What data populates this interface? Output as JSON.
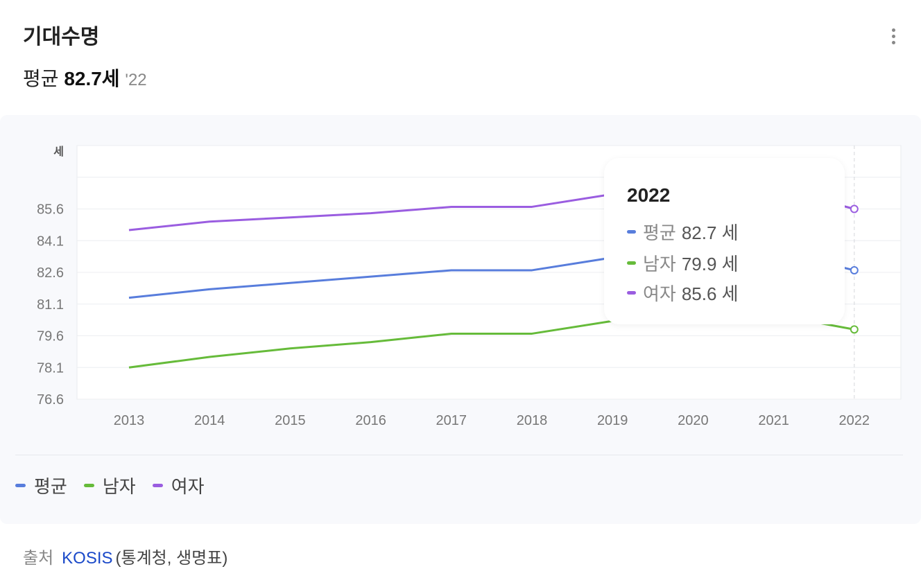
{
  "header": {
    "title": "기대수명",
    "summary_label": "평균",
    "summary_value": "82.7세",
    "summary_year": "'22"
  },
  "menu_icon": "more-vertical-icon",
  "chart_data": {
    "type": "line",
    "ylabel": "세",
    "ylim": [
      76.6,
      88.6
    ],
    "yticks": [
      "76.6",
      "78.1",
      "79.6",
      "81.1",
      "82.6",
      "84.1",
      "85.6"
    ],
    "categories": [
      "2013",
      "2014",
      "2015",
      "2016",
      "2017",
      "2018",
      "2019",
      "2020",
      "2021",
      "2022"
    ],
    "grid": true,
    "legend_placement": "bottom-left",
    "series": [
      {
        "name": "평균",
        "color": "#587ddc",
        "values": [
          81.4,
          81.8,
          82.1,
          82.4,
          82.7,
          82.7,
          83.3,
          83.5,
          83.6,
          82.7
        ]
      },
      {
        "name": "남자",
        "color": "#66bb3a",
        "values": [
          78.1,
          78.6,
          79.0,
          79.3,
          79.7,
          79.7,
          80.3,
          80.5,
          80.6,
          79.9
        ]
      },
      {
        "name": "여자",
        "color": "#9a5de0",
        "values": [
          84.6,
          85.0,
          85.2,
          85.4,
          85.7,
          85.7,
          86.3,
          86.5,
          86.6,
          85.6
        ]
      }
    ]
  },
  "tooltip": {
    "year": "2022",
    "rows": [
      {
        "label": "평균",
        "value": "82.7 세"
      },
      {
        "label": "남자",
        "value": "79.9 세"
      },
      {
        "label": "여자",
        "value": "85.6 세"
      }
    ]
  },
  "source": {
    "label": "출처",
    "link": "KOSIS",
    "rest": "(통계청, 생명표)"
  }
}
